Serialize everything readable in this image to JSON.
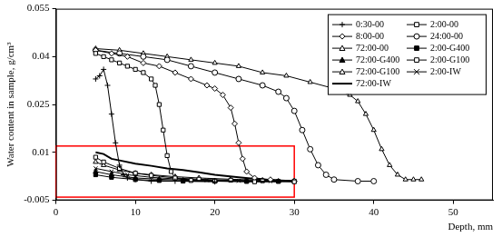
{
  "chart_data": {
    "type": "line",
    "x_label": "Depth, mm",
    "y_label": "Water content in sample, g/cm³",
    "xlim": [
      0,
      55
    ],
    "xticks": [
      0,
      10,
      20,
      30,
      40,
      50
    ],
    "ylim": [
      -0.005,
      0.055
    ],
    "yticks": [
      -0.005,
      0.01,
      0.025,
      0.04,
      0.055
    ],
    "grid": false,
    "legend": "top-right",
    "highlight_box": {
      "xlim": [
        0,
        30
      ],
      "ylim": [
        -0.004,
        0.012
      ],
      "color": "#ff0000"
    },
    "series": [
      {
        "name": "0:30-00",
        "color": "#000000",
        "marker": "plus",
        "line_style": "solid",
        "x": [
          5,
          5.5,
          6,
          6.5,
          7,
          7.5,
          8,
          8.5,
          9,
          10,
          12,
          15,
          20
        ],
        "values": [
          0.033,
          0.034,
          0.036,
          0.031,
          0.022,
          0.013,
          0.006,
          0.003,
          0.002,
          0.0015,
          0.001,
          0.001,
          0.0008
        ]
      },
      {
        "name": "2:00-00",
        "color": "#000000",
        "marker": "square",
        "line_style": "solid",
        "x": [
          5,
          6,
          7,
          8,
          9,
          10,
          11,
          12,
          12.5,
          13,
          13.5,
          14,
          14.5,
          15,
          17,
          20,
          25,
          30
        ],
        "values": [
          0.041,
          0.04,
          0.039,
          0.038,
          0.037,
          0.036,
          0.035,
          0.033,
          0.031,
          0.025,
          0.017,
          0.009,
          0.004,
          0.002,
          0.0012,
          0.001,
          0.0008,
          0.0008
        ]
      },
      {
        "name": "8:00-00",
        "color": "#000000",
        "marker": "diamond",
        "line_style": "solid",
        "x": [
          5,
          7,
          9,
          11,
          13,
          15,
          17,
          19,
          20,
          21,
          22,
          22.5,
          23,
          23.5,
          24,
          25,
          27,
          30
        ],
        "values": [
          0.042,
          0.041,
          0.04,
          0.038,
          0.037,
          0.035,
          0.033,
          0.031,
          0.03,
          0.028,
          0.024,
          0.019,
          0.013,
          0.008,
          0.004,
          0.002,
          0.0015,
          0.001
        ]
      },
      {
        "name": "24:00-00",
        "color": "#000000",
        "marker": "circle",
        "line_style": "solid",
        "x": [
          5,
          8,
          11,
          14,
          17,
          20,
          23,
          26,
          28,
          29,
          30,
          31,
          32,
          33,
          34,
          35,
          38,
          40
        ],
        "values": [
          0.042,
          0.041,
          0.04,
          0.039,
          0.037,
          0.035,
          0.033,
          0.031,
          0.029,
          0.027,
          0.023,
          0.017,
          0.011,
          0.006,
          0.003,
          0.0015,
          0.001,
          0.001
        ]
      },
      {
        "name": "72:00-00",
        "color": "#000000",
        "marker": "triangle",
        "line_style": "solid",
        "x": [
          5,
          8,
          11,
          14,
          17,
          20,
          23,
          26,
          29,
          32,
          35,
          37,
          38,
          39,
          40,
          41,
          42,
          43,
          44,
          45,
          46
        ],
        "values": [
          0.0425,
          0.042,
          0.041,
          0.04,
          0.039,
          0.038,
          0.037,
          0.035,
          0.034,
          0.032,
          0.03,
          0.028,
          0.026,
          0.022,
          0.017,
          0.011,
          0.006,
          0.003,
          0.0015,
          0.0015,
          0.0015
        ]
      },
      {
        "name": "2:00-G400",
        "color": "#000000",
        "marker": "filled_square",
        "line_style": "solid",
        "x": [
          5,
          7,
          10,
          13,
          16,
          20,
          24,
          28
        ],
        "values": [
          0.003,
          0.0022,
          0.0015,
          0.0012,
          0.001,
          0.001,
          0.0009,
          0.0009
        ]
      },
      {
        "name": "72:00-G400",
        "color": "#000000",
        "marker": "filled_triangle",
        "line_style": "solid",
        "x": [
          5,
          7,
          10,
          13,
          16,
          20,
          24,
          28
        ],
        "values": [
          0.004,
          0.003,
          0.002,
          0.0016,
          0.0013,
          0.0011,
          0.001,
          0.001
        ]
      },
      {
        "name": "2:00-G100",
        "color": "#000000",
        "marker": "square",
        "line_style": "solid",
        "x": [
          5,
          6,
          8,
          10,
          12,
          15,
          18,
          22,
          26,
          30
        ],
        "values": [
          0.0085,
          0.007,
          0.005,
          0.0035,
          0.0028,
          0.002,
          0.0016,
          0.0013,
          0.0011,
          0.001
        ]
      },
      {
        "name": "72:00-G100",
        "color": "#000000",
        "marker": "triangle",
        "line_style": "solid",
        "x": [
          5,
          6,
          8,
          10,
          12,
          15,
          18,
          22,
          26,
          30
        ],
        "values": [
          0.007,
          0.006,
          0.0045,
          0.0035,
          0.003,
          0.0024,
          0.002,
          0.0016,
          0.0013,
          0.0011
        ]
      },
      {
        "name": "2:00-IW",
        "color": "#000000",
        "marker": "x",
        "line_style": "solid",
        "x": [
          5,
          7,
          9,
          12,
          15,
          19,
          23,
          27
        ],
        "values": [
          0.005,
          0.004,
          0.003,
          0.0022,
          0.0017,
          0.0013,
          0.0011,
          0.001
        ]
      },
      {
        "name": "72:00-IW",
        "color": "#000000",
        "marker": "none",
        "line_style": "solid",
        "x": [
          5,
          6,
          7,
          8,
          10,
          12,
          14,
          16,
          18,
          20,
          23,
          26,
          30
        ],
        "values": [
          0.01,
          0.0095,
          0.008,
          0.0075,
          0.0065,
          0.0058,
          0.005,
          0.0045,
          0.0038,
          0.003,
          0.0022,
          0.0015,
          0.001
        ]
      }
    ]
  }
}
